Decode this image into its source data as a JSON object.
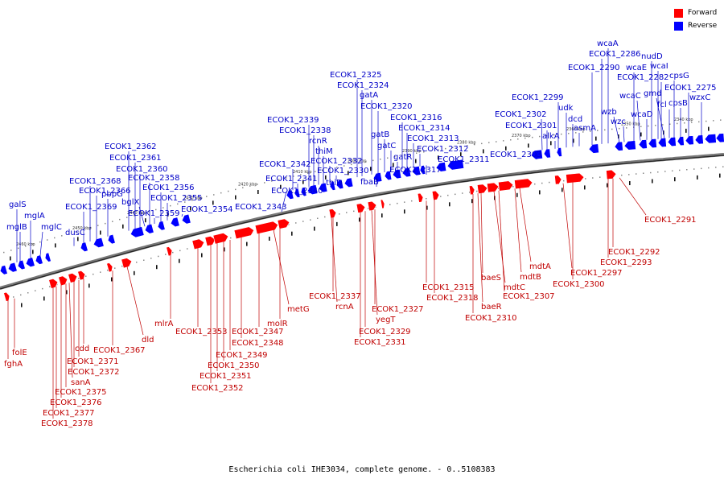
{
  "caption": "Escherichia coli IHE3034, complete genome. - 0..5108383",
  "legend": {
    "forward": {
      "label": "Forward",
      "color": "#ff0000"
    },
    "reverse": {
      "label": "Reverse",
      "color": "#0000ff"
    }
  },
  "ticks": [
    "2460 kbp",
    "2450 kbp",
    "2440 kbp",
    "2430 kbp",
    "2420 kbp",
    "2410 kbp",
    "2400 kbp",
    "2390 kbp",
    "2380 kbp",
    "2370 kbp",
    "2360 kbp",
    "2350 kbp",
    "2340 kbp"
  ],
  "reverse_genes": [
    "galS",
    "mglB",
    "mglA",
    "mglC",
    "dusC",
    "ECOK1_2369",
    "ECOK1_2368",
    "ECOK1_2366",
    "pbpG",
    "ECOK1_2362",
    "ECOK1_2361",
    "ECOK1_2360",
    "bglX",
    "ECOK1_2358",
    "ECOK1_2359",
    "ECOK1_2356",
    "ECOK1_2355",
    "ECOK1_2354",
    "ECOK1_2343",
    "ECOK1_2342",
    "ECOK1_2341",
    "ECOK1_2340",
    "ECOK1_2339",
    "ECOK1_2338",
    "rcnR",
    "thiM",
    "ECOK1_2332",
    "ECOK1_2330",
    "thiD",
    "ECOK1_2325",
    "ECOK1_2324",
    "gatA",
    "ECOK1_2320",
    "gatB",
    "gatC",
    "gatR",
    "fbaB",
    "ECOK1_2316",
    "ECOK1_2314",
    "ECOK1_2313",
    "ECOK1_2312",
    "ECOK1_2317",
    "ECOK1_2311",
    "ECOK1_2303",
    "ECOK1_2302",
    "ECOK1_2301",
    "alkA",
    "ECOK1_2299",
    "udk",
    "dcd",
    "asmA",
    "wzb",
    "wzc",
    "ECOK1_2290",
    "ECOK1_2286",
    "wcaA",
    "wcaE",
    "wcaC",
    "wcaD",
    "nudD",
    "wcaI",
    "ECOK1_2282",
    "gmd",
    "fcl",
    "cpsG",
    "cpsB",
    "ECOK1_2275",
    "wzxC"
  ],
  "forward_genes": [
    "folE",
    "fghA",
    "cdd",
    "ECOK1_2371",
    "ECOK1_2372",
    "sanA",
    "ECOK1_2375",
    "ECOK1_2376",
    "ECOK1_2377",
    "ECOK1_2378",
    "ECOK1_2367",
    "dld",
    "mlrA",
    "ECOK1_2353",
    "ECOK1_2347",
    "ECOK1_2348",
    "ECOK1_2349",
    "ECOK1_2350",
    "ECOK1_2351",
    "ECOK1_2352",
    "molR",
    "metG",
    "ECOK1_2337",
    "rcnA",
    "ECOK1_2327",
    "yegT",
    "ECOK1_2329",
    "ECOK1_2331",
    "ECOK1_2315",
    "ECOK1_2318",
    "baeS",
    "baeR",
    "ECOK1_2310",
    "mdtC",
    "ECOK1_2307",
    "mdtA",
    "mdtB",
    "ECOK1_2297",
    "ECOK1_2300",
    "ECOK1_2292",
    "ECOK1_2293",
    "ECOK1_2291"
  ]
}
